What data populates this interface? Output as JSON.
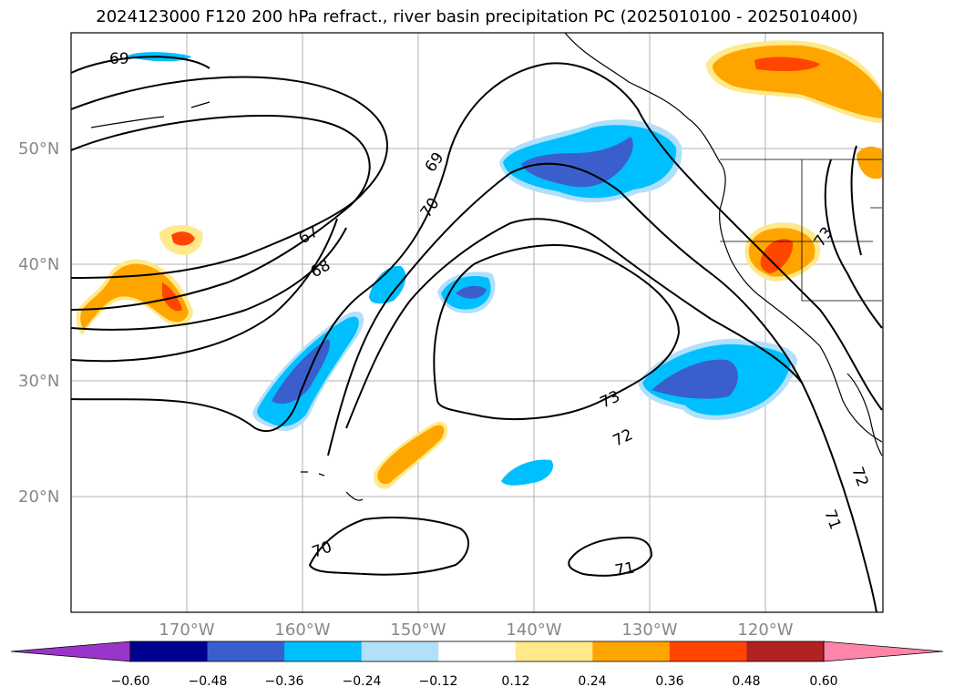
{
  "map": {
    "title": "2024123000 F120 200 hPa refract., river basin precipitation PC (2025010100 - 2025010400)",
    "lat_labels": [
      "50°N",
      "40°N",
      "30°N",
      "20°N"
    ],
    "lon_labels": [
      "170°W",
      "160°W",
      "150°W",
      "140°W",
      "130°W",
      "120°W"
    ],
    "contour_labels": [
      "69",
      "67",
      "68",
      "69",
      "70",
      "73",
      "72",
      "73",
      "72",
      "71",
      "70",
      "71"
    ],
    "colorbar": {
      "ticks": [
        "−0.60",
        "−0.48",
        "−0.36",
        "−0.24",
        "−0.12",
        "0.12",
        "0.24",
        "0.36",
        "0.48",
        "0.60"
      ],
      "colors": [
        "#9a35c9",
        "#000090",
        "#3a5fcd",
        "#00bfff",
        "#b0e0fa",
        "#ffffff",
        "#ffe98a",
        "#ffa500",
        "#ff4500",
        "#b22222",
        "#ff85a8"
      ]
    },
    "colors": {
      "positive_light": "#ffe98a",
      "positive_mid": "#ffa500",
      "positive_strong": "#ff4500",
      "negative_light": "#b0e0fa",
      "negative_mid": "#00bfff",
      "negative_strong": "#3a5fcd",
      "grid": "#b0b0b0",
      "contour": "#000000"
    }
  }
}
